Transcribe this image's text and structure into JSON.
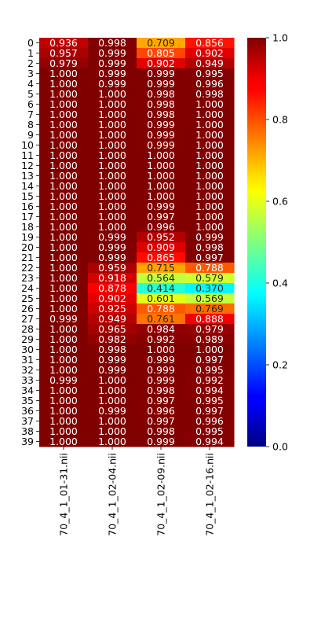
{
  "chart_data": {
    "type": "heatmap",
    "title": "",
    "xlabel": "",
    "ylabel": "",
    "columns": [
      "70_4_1_01-31.nii",
      "70_4_1_02-04.nii",
      "70_4_1_02-09.nii",
      "70_4_1_02-16.nii"
    ],
    "rows": [
      "0",
      "1",
      "2",
      "3",
      "4",
      "5",
      "6",
      "7",
      "8",
      "9",
      "10",
      "11",
      "12",
      "13",
      "14",
      "15",
      "16",
      "17",
      "18",
      "19",
      "20",
      "21",
      "22",
      "23",
      "24",
      "25",
      "26",
      "27",
      "28",
      "29",
      "30",
      "31",
      "32",
      "33",
      "34",
      "35",
      "36",
      "37",
      "38",
      "39"
    ],
    "values": [
      [
        0.936,
        0.998,
        0.709,
        0.856
      ],
      [
        0.957,
        0.999,
        0.805,
        0.902
      ],
      [
        0.979,
        0.999,
        0.902,
        0.949
      ],
      [
        1.0,
        0.999,
        0.999,
        0.995
      ],
      [
        1.0,
        0.999,
        0.999,
        0.996
      ],
      [
        1.0,
        1.0,
        0.998,
        0.998
      ],
      [
        1.0,
        1.0,
        0.998,
        1.0
      ],
      [
        1.0,
        1.0,
        0.998,
        1.0
      ],
      [
        1.0,
        1.0,
        0.999,
        1.0
      ],
      [
        1.0,
        1.0,
        0.999,
        1.0
      ],
      [
        1.0,
        1.0,
        0.999,
        1.0
      ],
      [
        1.0,
        1.0,
        1.0,
        1.0
      ],
      [
        1.0,
        1.0,
        1.0,
        1.0
      ],
      [
        1.0,
        1.0,
        1.0,
        1.0
      ],
      [
        1.0,
        1.0,
        1.0,
        1.0
      ],
      [
        1.0,
        1.0,
        1.0,
        1.0
      ],
      [
        1.0,
        1.0,
        0.999,
        1.0
      ],
      [
        1.0,
        1.0,
        0.997,
        1.0
      ],
      [
        1.0,
        1.0,
        0.996,
        1.0
      ],
      [
        1.0,
        0.999,
        0.952,
        0.999
      ],
      [
        1.0,
        0.999,
        0.909,
        0.998
      ],
      [
        1.0,
        0.999,
        0.865,
        0.997
      ],
      [
        1.0,
        0.959,
        0.715,
        0.788
      ],
      [
        1.0,
        0.918,
        0.564,
        0.579
      ],
      [
        1.0,
        0.878,
        0.414,
        0.37
      ],
      [
        1.0,
        0.902,
        0.601,
        0.569
      ],
      [
        1.0,
        0.925,
        0.788,
        0.769
      ],
      [
        0.999,
        0.949,
        0.761,
        0.888
      ],
      [
        1.0,
        0.965,
        0.984,
        0.979
      ],
      [
        1.0,
        0.982,
        0.992,
        0.989
      ],
      [
        1.0,
        0.998,
        1.0,
        1.0
      ],
      [
        1.0,
        0.999,
        0.999,
        0.997
      ],
      [
        1.0,
        0.999,
        0.999,
        0.995
      ],
      [
        0.999,
        1.0,
        0.999,
        0.992
      ],
      [
        1.0,
        1.0,
        0.998,
        0.994
      ],
      [
        1.0,
        1.0,
        0.997,
        0.995
      ],
      [
        1.0,
        0.999,
        0.996,
        0.997
      ],
      [
        1.0,
        1.0,
        0.997,
        0.996
      ],
      [
        1.0,
        1.0,
        0.998,
        0.995
      ],
      [
        1.0,
        1.0,
        0.999,
        0.994
      ]
    ],
    "colormap": "jet",
    "vmin": 0.0,
    "vmax": 1.0,
    "colorbar_ticks": [
      "0.0",
      "0.2",
      "0.4",
      "0.6",
      "0.8",
      "1.0"
    ],
    "annotation_format": "3 decimals"
  }
}
